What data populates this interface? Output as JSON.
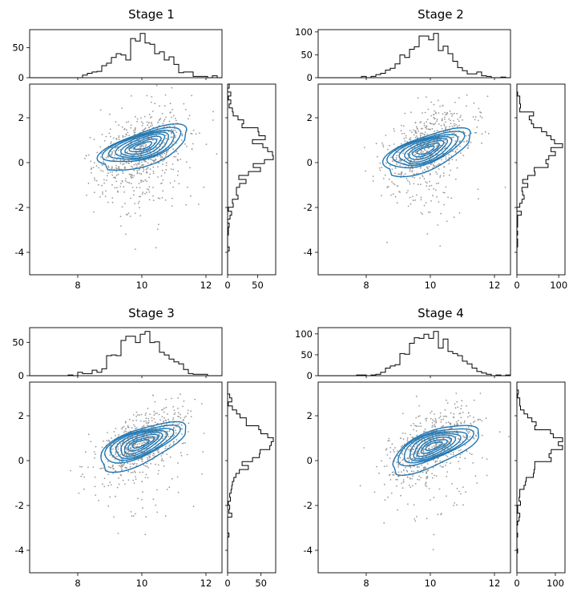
{
  "chart_data": [
    {
      "type": "scatter",
      "title": "Stage 1",
      "xlim": [
        6.5,
        12.5
      ],
      "ylim": [
        -5,
        3.5
      ],
      "xticks": [
        8,
        10,
        12
      ],
      "yticks": [
        -4,
        -2,
        0,
        2
      ],
      "top_hist": {
        "ylim": [
          0,
          80
        ],
        "yticks": [
          0,
          50
        ]
      },
      "right_hist": {
        "xlim": [
          0,
          80
        ],
        "xticks": [
          0,
          50
        ]
      },
      "colors": {
        "contour": "#1f77b4",
        "points": "#9a9a9a",
        "hist": "#000000"
      }
    },
    {
      "type": "scatter",
      "title": "Stage 2",
      "xlim": [
        6.5,
        12.5
      ],
      "ylim": [
        -5,
        3.5
      ],
      "xticks": [
        8,
        10,
        12
      ],
      "yticks": [
        -4,
        -2,
        0,
        2
      ],
      "top_hist": {
        "ylim": [
          0,
          105
        ],
        "yticks": [
          0,
          50,
          100
        ]
      },
      "right_hist": {
        "xlim": [
          0,
          115
        ],
        "xticks": [
          0,
          100
        ]
      },
      "colors": {
        "contour": "#1f77b4",
        "points": "#9a9a9a",
        "hist": "#000000"
      }
    },
    {
      "type": "scatter",
      "title": "Stage 3",
      "xlim": [
        6.5,
        12.5
      ],
      "ylim": [
        -5,
        3.5
      ],
      "xticks": [
        8,
        10,
        12
      ],
      "yticks": [
        -4,
        -2,
        0,
        2
      ],
      "top_hist": {
        "ylim": [
          0,
          72
        ],
        "yticks": [
          0,
          50
        ]
      },
      "right_hist": {
        "xlim": [
          0,
          72
        ],
        "xticks": [
          0,
          50
        ]
      },
      "colors": {
        "contour": "#1f77b4",
        "points": "#9a9a9a",
        "hist": "#000000"
      }
    },
    {
      "type": "scatter",
      "title": "Stage 4",
      "xlim": [
        6.5,
        12.5
      ],
      "ylim": [
        -5,
        3.5
      ],
      "xticks": [
        8,
        10,
        12
      ],
      "yticks": [
        -4,
        -2,
        0,
        2
      ],
      "top_hist": {
        "ylim": [
          0,
          115
        ],
        "yticks": [
          0,
          50,
          100
        ]
      },
      "right_hist": {
        "xlim": [
          0,
          125
        ],
        "xticks": [
          0,
          100
        ]
      },
      "colors": {
        "contour": "#1f77b4",
        "points": "#9a9a9a",
        "hist": "#000000"
      }
    }
  ]
}
